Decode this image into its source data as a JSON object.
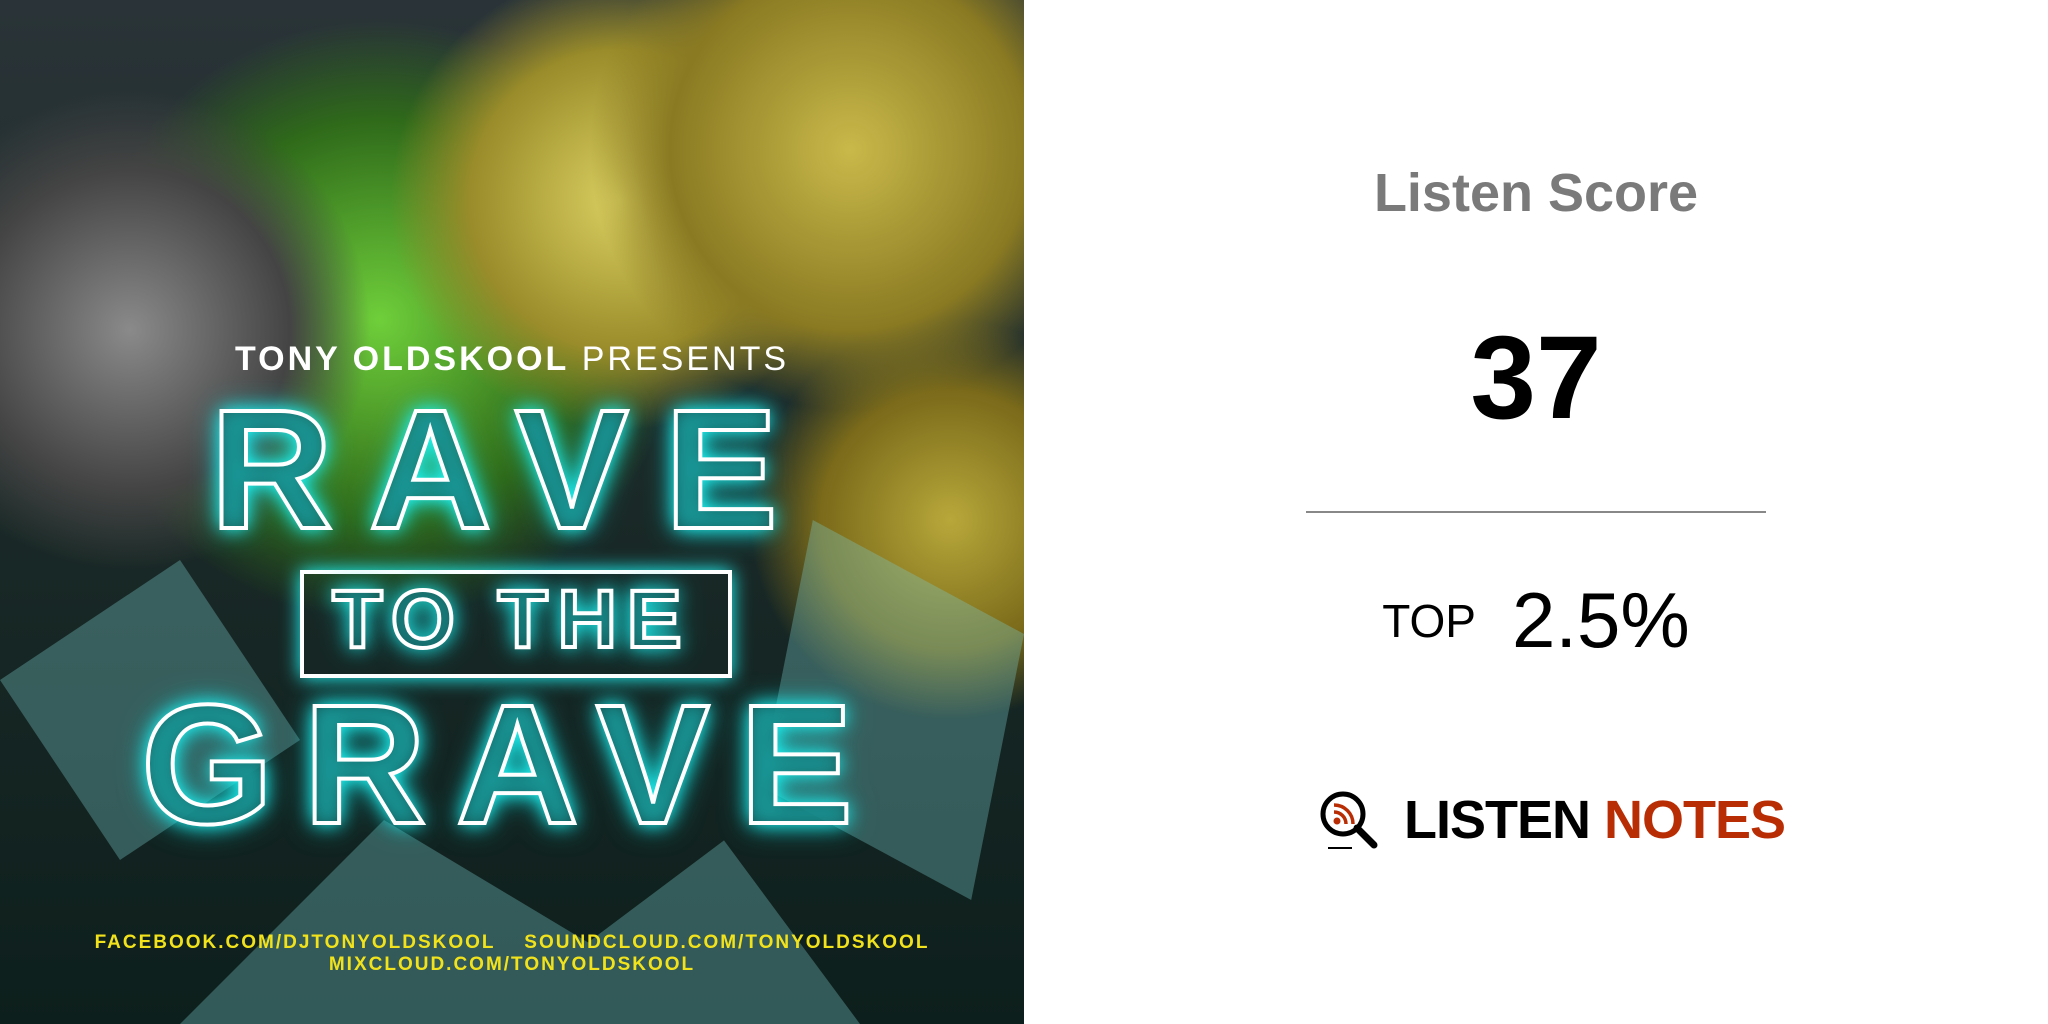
{
  "cover": {
    "presenter": "TONY OLDSKOOL",
    "presents": "PRESENTS",
    "title_line1": "RAVE",
    "title_line2": "TO THE",
    "title_line3": "GRAVE",
    "links_line1": "FACEBOOK.COM/DJTONYOLDSKOOL    SOUNDCLOUD.COM/TONYOLDSKOOL",
    "links_line2": "MIXCLOUD.COM/TONYOLDSKOOL"
  },
  "score": {
    "title": "Listen Score",
    "value": "37",
    "top_label": "TOP",
    "top_value": "2.5%"
  },
  "logo": {
    "part1": "LISTEN",
    "part2": "NOTES",
    "icon": "magnifier-rss-icon",
    "accent": "#b92d04"
  }
}
